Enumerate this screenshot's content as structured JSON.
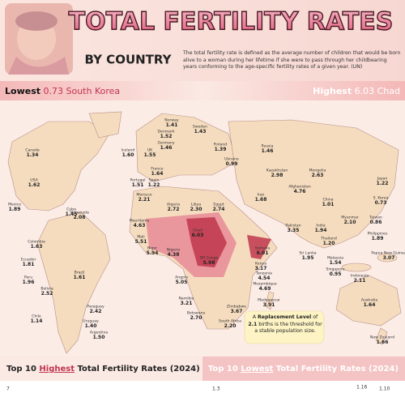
{
  "header": {
    "title": "TOTAL FERTILITY RATES",
    "subtitle": "BY COUNTRY",
    "description": "The total fertility rate is defined as the average number of children that would be born alive to a woman during her lifetime if she were to pass through her childbearing years conforming to the age-specific fertility rates of a given year. (UN)"
  },
  "lowest": {
    "label": "Lowest",
    "value": "0.73",
    "country": "South Korea"
  },
  "highest": {
    "label": "Highest",
    "value": "6.03",
    "country": "Chad"
  },
  "countries": [
    {
      "name": "Canada",
      "value": "1.34"
    },
    {
      "name": "USA",
      "value": "1.62"
    },
    {
      "name": "Mexico",
      "value": "1.89"
    },
    {
      "name": "Cuba",
      "value": "1.45"
    },
    {
      "name": "Colombia",
      "value": "1.63"
    },
    {
      "name": "Venezuela",
      "value": "2.08"
    },
    {
      "name": "Ecuador",
      "value": "1.81"
    },
    {
      "name": "Peru",
      "value": "1.96"
    },
    {
      "name": "Brazil",
      "value": "1.61"
    },
    {
      "name": "Bolivia",
      "value": "2.52"
    },
    {
      "name": "Paraguay",
      "value": "2.42"
    },
    {
      "name": "Chile",
      "value": "1.14"
    },
    {
      "name": "Uruguay",
      "value": "1.40"
    },
    {
      "name": "Argentina",
      "value": "1.50"
    },
    {
      "name": "Iceland",
      "value": "1.60"
    },
    {
      "name": "UK",
      "value": "1.55"
    },
    {
      "name": "Norway",
      "value": "1.41"
    },
    {
      "name": "Denmark",
      "value": "1.52"
    },
    {
      "name": "Germany",
      "value": "1.46"
    },
    {
      "name": "Sweden",
      "value": "1.43"
    },
    {
      "name": "Finland",
      "value": "1.39"
    },
    {
      "name": "Ukraine",
      "value": "0.99"
    },
    {
      "name": "France",
      "value": "1.64"
    },
    {
      "name": "Portugal",
      "value": "1.51"
    },
    {
      "name": "Spain",
      "value": "1.22"
    },
    {
      "name": "Morocco",
      "value": "2.21"
    },
    {
      "name": "Russia",
      "value": "1.46"
    },
    {
      "name": "Kazakhstan",
      "value": "2.98"
    },
    {
      "name": "Mongolia",
      "value": "2.63"
    },
    {
      "name": "Japan",
      "value": "1.22"
    },
    {
      "name": "S. Korea",
      "value": "0.73"
    },
    {
      "name": "China",
      "value": "1.01"
    },
    {
      "name": "Afghanistan",
      "value": "4.76"
    },
    {
      "name": "Iran",
      "value": "1.68"
    },
    {
      "name": "Pakistan",
      "value": "3.35"
    },
    {
      "name": "India",
      "value": "1.94"
    },
    {
      "name": "Myanmar",
      "value": "2.10"
    },
    {
      "name": "Taiwan",
      "value": "0.86"
    },
    {
      "name": "Thailand",
      "value": "1.20"
    },
    {
      "name": "Sri Lanka",
      "value": "1.95"
    },
    {
      "name": "Philippines",
      "value": "1.89"
    },
    {
      "name": "Malaysia",
      "value": "1.54"
    },
    {
      "name": "Singapore",
      "value": "0.95"
    },
    {
      "name": "Indonesia",
      "value": "2.11"
    },
    {
      "name": "Papua New Guinea",
      "value": "3.07"
    },
    {
      "name": "Australia",
      "value": "1.64"
    },
    {
      "name": "New Zealand",
      "value": "1.66"
    },
    {
      "name": "Algeria",
      "value": "2.72"
    },
    {
      "name": "Libya",
      "value": "2.30"
    },
    {
      "name": "Egypt",
      "value": "2.74"
    },
    {
      "name": "Mauritania",
      "value": "4.63"
    },
    {
      "name": "Mali",
      "value": "5.51"
    },
    {
      "name": "Niger",
      "value": "5.94"
    },
    {
      "name": "Chad",
      "value": "6.03"
    },
    {
      "name": "Nigeria",
      "value": "4.38"
    },
    {
      "name": "Somalia",
      "value": "6.01"
    },
    {
      "name": "Kenya",
      "value": "3.17"
    },
    {
      "name": "DR Congo",
      "value": "5.98"
    },
    {
      "name": "Tanzania",
      "value": "4.54"
    },
    {
      "name": "Angola",
      "value": "5.05"
    },
    {
      "name": "Mozambique",
      "value": "4.69"
    },
    {
      "name": "Namibia",
      "value": "3.21"
    },
    {
      "name": "Madagascar",
      "value": "3.91"
    },
    {
      "name": "Zimbabwe",
      "value": "3.67"
    },
    {
      "name": "Botswana",
      "value": "2.70"
    },
    {
      "name": "South Africa",
      "value": "2.20"
    }
  ],
  "note": {
    "a": "A",
    "b": "Replacement Level",
    "c": "of",
    "d": "2.1",
    "e": "births is the threshold for a stable population size."
  },
  "bottom": {
    "left": {
      "a": "Top 10",
      "b": "Highest",
      "c": "Total Fertility Rates (2024)"
    },
    "right": {
      "a": "Top 10",
      "b": "Lowest",
      "c": "Total Fertility Rates (2024)"
    },
    "peek": [
      "7",
      "1.3",
      "1.16",
      "1.10"
    ]
  }
}
